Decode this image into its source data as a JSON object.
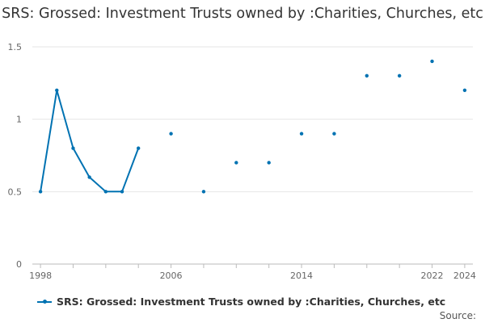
{
  "chart_data": {
    "type": "line",
    "title": "SRS: Grossed: Investment Trusts owned by :Charities, Churches, etc",
    "xlabel": "",
    "ylabel": "",
    "x_tick_labels": [
      "1998",
      "2006",
      "2014",
      "2022",
      "2024"
    ],
    "y_tick_labels": [
      "0",
      "0.5",
      "1",
      "1.5"
    ],
    "xlim": [
      1997.5,
      2024.5
    ],
    "ylim": [
      0,
      1.5
    ],
    "grid": true,
    "legend_position": "bottom",
    "series": [
      {
        "name": "SRS: Grossed: Investment Trusts owned by :Charities, Churches, etc",
        "color": "#0072b2",
        "x": [
          1998,
          1999,
          2000,
          2001,
          2002,
          2003,
          2004,
          2006,
          2008,
          2010,
          2012,
          2014,
          2016,
          2018,
          2020,
          2022,
          2024
        ],
        "y": [
          0.5,
          1.2,
          0.8,
          0.6,
          0.5,
          0.5,
          0.8,
          0.9,
          0.5,
          0.7,
          0.7,
          0.9,
          0.9,
          1.3,
          1.3,
          1.4,
          1.2
        ]
      }
    ],
    "source_label": "Source:"
  }
}
